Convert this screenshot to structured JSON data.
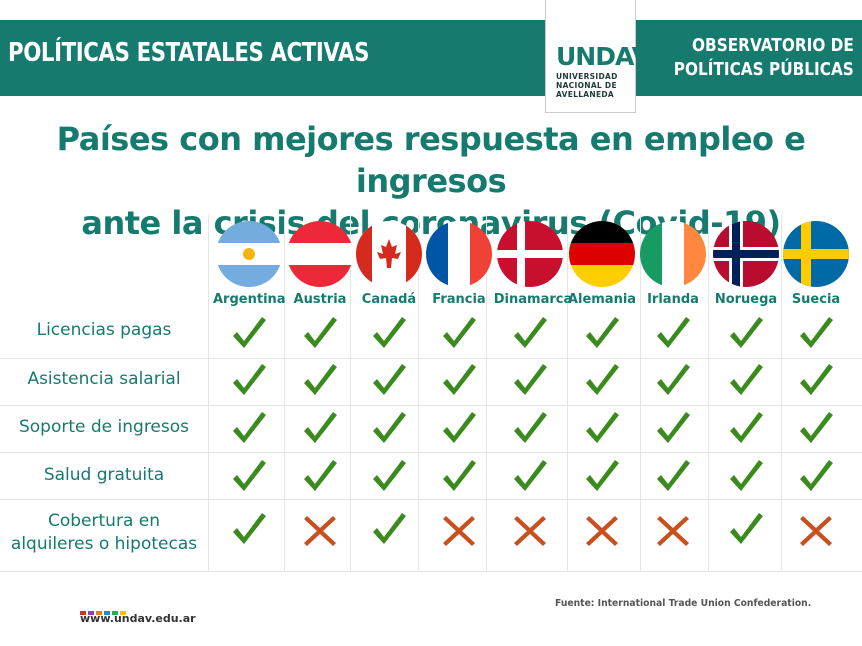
{
  "header": {
    "left_title": "POLÍTICAS ESTATALES ACTIVAS",
    "right_line1": "OBSERVATORIO DE",
    "right_line2": "POLÍTICAS PÚBLICAS",
    "logo_mark": "UNDAV",
    "logo_line1": "UNIVERSIDAD",
    "logo_line2": "NACIONAL DE",
    "logo_line3": "AVELLANEDA"
  },
  "title": {
    "line1": "Países con mejores respuesta en empleo e ingresos",
    "line2": "ante la crisis del coronavirus (Covid-19)"
  },
  "countries": [
    "Argentina",
    "Austria",
    "Canadá",
    "Francia",
    "Dinamarca",
    "Alemania",
    "Irlanda",
    "Noruega",
    "Suecia"
  ],
  "rows": [
    {
      "label_line1": "Licencias pagas",
      "label_line2": "",
      "values": [
        true,
        true,
        true,
        true,
        true,
        true,
        true,
        true,
        true
      ]
    },
    {
      "label_line1": "Asistencia salarial",
      "label_line2": "",
      "values": [
        true,
        true,
        true,
        true,
        true,
        true,
        true,
        true,
        true
      ]
    },
    {
      "label_line1": "Soporte de ingresos",
      "label_line2": "",
      "values": [
        true,
        true,
        true,
        true,
        true,
        true,
        true,
        true,
        true
      ]
    },
    {
      "label_line1": "Salud gratuita",
      "label_line2": "",
      "values": [
        true,
        true,
        true,
        true,
        true,
        true,
        true,
        true,
        true
      ]
    },
    {
      "label_line1": "Cobertura en",
      "label_line2": "alquileres o hipotecas",
      "values": [
        true,
        false,
        true,
        false,
        false,
        false,
        false,
        true,
        false
      ]
    }
  ],
  "colors": {
    "teal": "#167a6e",
    "check": "#3a8a1e",
    "cross": "#c8501e"
  },
  "footer": {
    "url": "www.undav.edu.ar",
    "source": "Fuente: International Trade Union Confederation.",
    "dot_colors": [
      "#c0392b",
      "#8e44ad",
      "#e67e22",
      "#2e86c1",
      "#27ae60",
      "#f1c40f"
    ]
  }
}
